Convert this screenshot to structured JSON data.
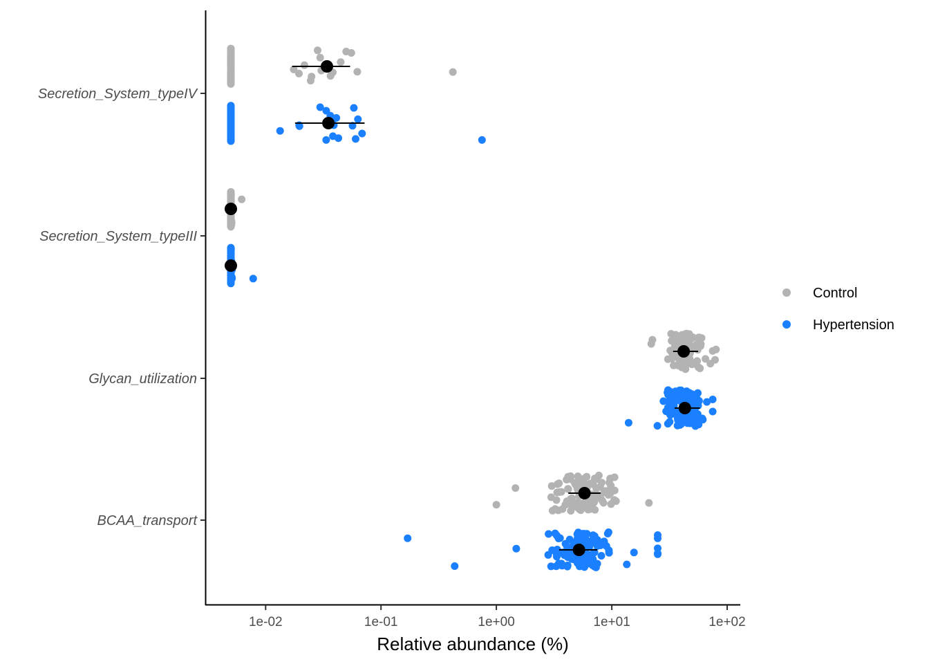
{
  "chart_data": {
    "type": "scatter",
    "subtype": "jitter-strip with mean and interval",
    "title": "",
    "xlabel": "Relative abundance (%)",
    "ylabel": "",
    "x_scale": "log10",
    "xlim": [
      0.003,
      130
    ],
    "x_ticks": [
      0.01,
      0.1,
      1,
      10,
      100
    ],
    "x_tick_labels": [
      "1e-02",
      "1e-01",
      "1e+00",
      "1e+01",
      "1e+02"
    ],
    "categories": [
      "Secretion_System_typeIV",
      "Secretion_System_typeIII",
      "Glycan_utilization",
      "BCAA_transport"
    ],
    "legend": {
      "position": "right",
      "entries": [
        "Control",
        "Hypertension"
      ]
    },
    "grid": false,
    "series": [
      {
        "name": "Control",
        "color": "#b3b3b3",
        "groups": [
          {
            "category": "Secretion_System_typeIV",
            "mean": 0.034,
            "low": 0.017,
            "high": 0.054,
            "n": 110,
            "min": 0.005,
            "max": 0.42,
            "typical_low": 0.012,
            "typical_high": 0.085
          },
          {
            "category": "Secretion_System_typeIII",
            "mean": 0.005,
            "low": 0.005,
            "high": 0.005,
            "n": 110,
            "min": 0.005,
            "max": 0.0062,
            "typical_low": 0.005,
            "typical_high": 0.0052
          },
          {
            "category": "Glycan_utilization",
            "mean": 42,
            "low": 34,
            "high": 56,
            "n": 110,
            "min": 22,
            "max": 80,
            "typical_low": 27,
            "typical_high": 72
          },
          {
            "category": "BCAA_transport",
            "mean": 5.8,
            "low": 4.2,
            "high": 8.0,
            "n": 110,
            "min": 1.0,
            "max": 21,
            "typical_low": 2.0,
            "typical_high": 15
          }
        ]
      },
      {
        "name": "Hypertension",
        "color": "#1a80ff",
        "groups": [
          {
            "category": "Secretion_System_typeIV",
            "mean": 0.035,
            "low": 0.018,
            "high": 0.072,
            "n": 120,
            "min": 0.005,
            "max": 0.75,
            "typical_low": 0.012,
            "typical_high": 0.12
          },
          {
            "category": "Secretion_System_typeIII",
            "mean": 0.005,
            "low": 0.005,
            "high": 0.005,
            "n": 120,
            "min": 0.005,
            "max": 0.0078,
            "typical_low": 0.005,
            "typical_high": 0.0052
          },
          {
            "category": "Glycan_utilization",
            "mean": 43,
            "low": 35,
            "high": 58,
            "n": 120,
            "min": 14,
            "max": 75,
            "typical_low": 26,
            "typical_high": 70
          },
          {
            "category": "BCAA_transport",
            "mean": 5.2,
            "low": 3.5,
            "high": 7.5,
            "n": 120,
            "min": 0.17,
            "max": 25,
            "typical_low": 2.2,
            "typical_high": 12
          }
        ]
      }
    ]
  }
}
